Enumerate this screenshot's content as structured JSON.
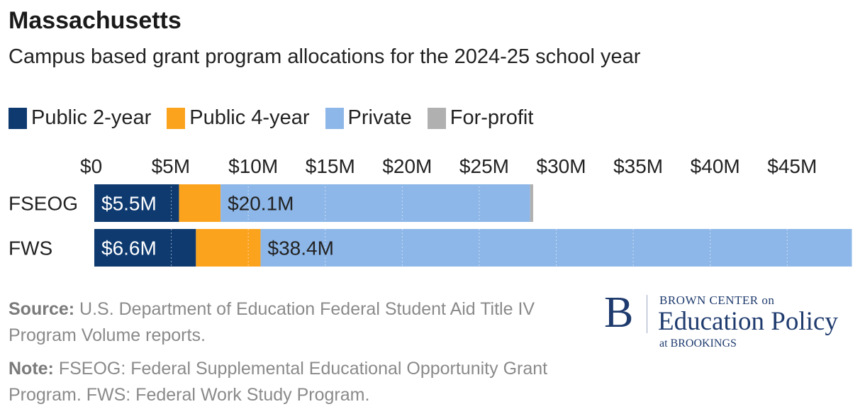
{
  "header": {
    "title": "Massachusetts",
    "subtitle": "Campus based grant program allocations for the 2024-25 school year"
  },
  "legend": [
    {
      "label": "Public 2-year",
      "color": "#0e3a70"
    },
    {
      "label": "Public 4-year",
      "color": "#fca31e"
    },
    {
      "label": "Private",
      "color": "#8db7e8"
    },
    {
      "label": "For-profit",
      "color": "#b0b0b0"
    }
  ],
  "chart_data": {
    "type": "bar",
    "orientation": "horizontal",
    "stacked": true,
    "title": "Massachusetts",
    "subtitle": "Campus based grant program allocations for the 2024-25 school year",
    "xlabel": "",
    "ylabel": "",
    "xlim": [
      0,
      49.5
    ],
    "x_ticks": [
      0,
      5,
      10,
      15,
      20,
      25,
      30,
      35,
      40,
      45
    ],
    "x_tick_labels": [
      "$0",
      "$5M",
      "$10M",
      "$15M",
      "$20M",
      "$25M",
      "$30M",
      "$35M",
      "$40M",
      "$45M"
    ],
    "x_axis_position": "top",
    "grid": true,
    "legend_position": "top-left",
    "categories": [
      "FSEOG",
      "FWS"
    ],
    "series": [
      {
        "name": "Public 2-year",
        "color": "#0e3a70",
        "values": [
          5.5,
          6.6
        ],
        "labels": [
          "$5.5M",
          "$6.6M"
        ],
        "label_color": "#ffffff"
      },
      {
        "name": "Public 4-year",
        "color": "#fca31e",
        "values": [
          2.7,
          4.2
        ],
        "labels": [
          "",
          ""
        ],
        "label_color": "#222222"
      },
      {
        "name": "Private",
        "color": "#8db7e8",
        "values": [
          20.1,
          38.4
        ],
        "labels": [
          "$20.1M",
          "$38.4M"
        ],
        "label_color": "#222222"
      },
      {
        "name": "For-profit",
        "color": "#b0b0b0",
        "values": [
          0.2,
          0.0
        ],
        "labels": [
          "",
          ""
        ],
        "label_color": "#222222"
      }
    ]
  },
  "footer": {
    "source_label": "Source:",
    "source_text": "U.S. Department of Education Federal Student Aid Title IV Program Volume reports.",
    "note_label": "Note:",
    "note_text": "FSEOG: Federal Supplemental Educational Opportunity Grant Program. FWS: Federal Work Study Program."
  },
  "logo": {
    "letter": "B",
    "line1": "BROWN CENTER on",
    "line2": "Education Policy",
    "line3": "at BROOKINGS"
  }
}
